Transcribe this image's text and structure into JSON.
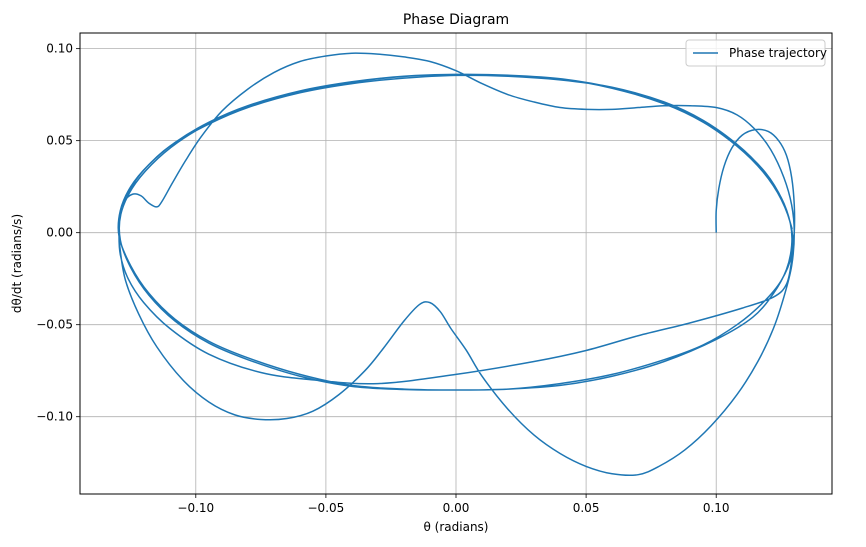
{
  "chart_data": {
    "type": "line",
    "title": "Phase Diagram",
    "xlabel": "θ (radians)",
    "ylabel": "dθ/dt (radians/s)",
    "xlim": [
      -0.1445,
      0.1445
    ],
    "ylim": [
      -0.142,
      0.1085
    ],
    "xticks": [
      {
        "value": -0.1,
        "label": "−0.10"
      },
      {
        "value": -0.05,
        "label": "−0.05"
      },
      {
        "value": 0.0,
        "label": "0.00"
      },
      {
        "value": 0.05,
        "label": "0.05"
      },
      {
        "value": 0.1,
        "label": "0.10"
      }
    ],
    "yticks": [
      {
        "value": -0.1,
        "label": "−0.10"
      },
      {
        "value": -0.05,
        "label": "−0.05"
      },
      {
        "value": 0.0,
        "label": "0.00"
      },
      {
        "value": 0.05,
        "label": "0.05"
      },
      {
        "value": 0.1,
        "label": "0.10"
      }
    ],
    "grid": true,
    "legend_position": "top-right",
    "series": [
      {
        "name": "Phase trajectory",
        "color": "#1f77b4",
        "points": [
          [
            0.1,
            0.0
          ],
          [
            0.1,
            0.012
          ],
          [
            0.101,
            0.024
          ],
          [
            0.103,
            0.036
          ],
          [
            0.106,
            0.046
          ],
          [
            0.11,
            0.053
          ],
          [
            0.115,
            0.056
          ],
          [
            0.12,
            0.055
          ],
          [
            0.124,
            0.05
          ],
          [
            0.127,
            0.042
          ],
          [
            0.129,
            0.03
          ],
          [
            0.13,
            0.015
          ],
          [
            0.13,
            0.0
          ],
          [
            0.129,
            -0.015
          ],
          [
            0.127,
            -0.028
          ],
          [
            0.122,
            -0.035
          ],
          [
            0.11,
            -0.041
          ],
          [
            0.09,
            -0.049
          ],
          [
            0.07,
            -0.056
          ],
          [
            0.05,
            -0.064
          ],
          [
            0.03,
            -0.07
          ],
          [
            0.0,
            -0.077
          ],
          [
            -0.03,
            -0.082
          ],
          [
            -0.055,
            -0.08
          ],
          [
            -0.075,
            -0.076
          ],
          [
            -0.095,
            -0.066
          ],
          [
            -0.11,
            -0.052
          ],
          [
            -0.12,
            -0.038
          ],
          [
            -0.126,
            -0.025
          ],
          [
            -0.129,
            -0.012
          ],
          [
            -0.1295,
            0.0
          ],
          [
            -0.129,
            0.012
          ],
          [
            -0.127,
            0.018
          ],
          [
            -0.124,
            0.021
          ],
          [
            -0.121,
            0.02
          ],
          [
            -0.118,
            0.016
          ],
          [
            -0.115,
            0.014
          ],
          [
            -0.113,
            0.017
          ],
          [
            -0.109,
            0.027
          ],
          [
            -0.104,
            0.039
          ],
          [
            -0.098,
            0.052
          ],
          [
            -0.09,
            0.066
          ],
          [
            -0.08,
            0.078
          ],
          [
            -0.07,
            0.087
          ],
          [
            -0.06,
            0.093
          ],
          [
            -0.05,
            0.096
          ],
          [
            -0.04,
            0.0975
          ],
          [
            -0.03,
            0.097
          ],
          [
            -0.02,
            0.0955
          ],
          [
            -0.01,
            0.093
          ],
          [
            0.0,
            0.088
          ],
          [
            0.01,
            0.081
          ],
          [
            0.02,
            0.075
          ],
          [
            0.03,
            0.071
          ],
          [
            0.04,
            0.068
          ],
          [
            0.05,
            0.067
          ],
          [
            0.06,
            0.067
          ],
          [
            0.07,
            0.068
          ],
          [
            0.08,
            0.069
          ],
          [
            0.09,
            0.069
          ],
          [
            0.1,
            0.068
          ],
          [
            0.108,
            0.064
          ],
          [
            0.115,
            0.056
          ],
          [
            0.121,
            0.045
          ],
          [
            0.126,
            0.03
          ],
          [
            0.129,
            0.015
          ],
          [
            0.13,
            0.0
          ],
          [
            0.129,
            -0.018
          ],
          [
            0.126,
            -0.035
          ],
          [
            0.122,
            -0.052
          ],
          [
            0.116,
            -0.07
          ],
          [
            0.108,
            -0.088
          ],
          [
            0.098,
            -0.105
          ],
          [
            0.088,
            -0.118
          ],
          [
            0.078,
            -0.127
          ],
          [
            0.07,
            -0.1315
          ],
          [
            0.06,
            -0.131
          ],
          [
            0.05,
            -0.127
          ],
          [
            0.04,
            -0.12
          ],
          [
            0.03,
            -0.11
          ],
          [
            0.02,
            -0.096
          ],
          [
            0.01,
            -0.078
          ],
          [
            0.004,
            -0.064
          ],
          [
            -0.002,
            -0.052
          ],
          [
            -0.006,
            -0.043
          ],
          [
            -0.01,
            -0.038
          ],
          [
            -0.014,
            -0.039
          ],
          [
            -0.02,
            -0.048
          ],
          [
            -0.028,
            -0.063
          ],
          [
            -0.035,
            -0.075
          ],
          [
            -0.045,
            -0.088
          ],
          [
            -0.055,
            -0.097
          ],
          [
            -0.065,
            -0.101
          ],
          [
            -0.075,
            -0.1015
          ],
          [
            -0.085,
            -0.099
          ],
          [
            -0.095,
            -0.092
          ],
          [
            -0.105,
            -0.08
          ],
          [
            -0.115,
            -0.062
          ],
          [
            -0.122,
            -0.044
          ],
          [
            -0.127,
            -0.026
          ],
          [
            -0.129,
            -0.01
          ],
          [
            -0.1295,
            0.002
          ],
          [
            -0.129,
            0.012
          ],
          [
            -0.126,
            0.022
          ],
          [
            -0.12,
            0.034
          ],
          [
            -0.11,
            0.047
          ],
          [
            -0.095,
            0.059
          ],
          [
            -0.08,
            0.068
          ],
          [
            -0.06,
            0.076
          ],
          [
            -0.04,
            0.081
          ],
          [
            -0.02,
            0.084
          ],
          [
            0.0,
            0.0855
          ],
          [
            0.02,
            0.085
          ],
          [
            0.04,
            0.083
          ],
          [
            0.06,
            0.079
          ],
          [
            0.08,
            0.071
          ],
          [
            0.095,
            0.061
          ],
          [
            0.108,
            0.048
          ],
          [
            0.118,
            0.034
          ],
          [
            0.125,
            0.019
          ],
          [
            0.1285,
            0.005
          ],
          [
            0.129,
            -0.007
          ],
          [
            0.127,
            -0.02
          ],
          [
            0.122,
            -0.033
          ],
          [
            0.114,
            -0.046
          ],
          [
            0.1,
            -0.058
          ],
          [
            0.08,
            -0.07
          ],
          [
            0.06,
            -0.078
          ],
          [
            0.04,
            -0.083
          ],
          [
            0.02,
            -0.085
          ],
          [
            0.0,
            -0.0855
          ],
          [
            -0.02,
            -0.085
          ],
          [
            -0.04,
            -0.083
          ],
          [
            -0.06,
            -0.077
          ],
          [
            -0.08,
            -0.068
          ],
          [
            -0.095,
            -0.059
          ],
          [
            -0.108,
            -0.047
          ],
          [
            -0.118,
            -0.033
          ],
          [
            -0.125,
            -0.018
          ],
          [
            -0.1295,
            -0.002
          ],
          [
            -0.129,
            0.012
          ],
          [
            -0.125,
            0.025
          ],
          [
            -0.118,
            0.037
          ],
          [
            -0.108,
            0.049
          ],
          [
            -0.095,
            0.06
          ],
          [
            -0.08,
            0.069
          ],
          [
            -0.06,
            0.077
          ],
          [
            -0.04,
            0.082
          ],
          [
            -0.02,
            0.085
          ],
          [
            0.0,
            0.086
          ],
          [
            0.02,
            0.0855
          ],
          [
            0.04,
            0.0835
          ],
          [
            0.06,
            0.0785
          ],
          [
            0.08,
            0.07
          ],
          [
            0.095,
            0.06
          ],
          [
            0.108,
            0.047
          ],
          [
            0.118,
            0.033
          ],
          [
            0.125,
            0.018
          ],
          [
            0.129,
            0.002
          ],
          [
            0.129,
            -0.012
          ],
          [
            0.125,
            -0.026
          ],
          [
            0.118,
            -0.038
          ],
          [
            0.108,
            -0.05
          ],
          [
            0.095,
            -0.061
          ],
          [
            0.08,
            -0.069
          ],
          [
            0.06,
            -0.077
          ],
          [
            0.04,
            -0.082
          ],
          [
            0.02,
            -0.085
          ],
          [
            0.0,
            -0.0855
          ],
          [
            -0.02,
            -0.0852
          ],
          [
            -0.04,
            -0.0835
          ],
          [
            -0.06,
            -0.078
          ],
          [
            -0.08,
            -0.069
          ],
          [
            -0.095,
            -0.06
          ],
          [
            -0.108,
            -0.048
          ],
          [
            -0.118,
            -0.034
          ],
          [
            -0.125,
            -0.019
          ],
          [
            -0.129,
            -0.004
          ],
          [
            -0.1288,
            0.01
          ],
          [
            -0.1245,
            0.024
          ],
          [
            -0.117,
            0.037
          ],
          [
            -0.107,
            0.049
          ],
          [
            -0.094,
            0.06
          ],
          [
            -0.079,
            0.069
          ],
          [
            -0.059,
            0.077
          ],
          [
            -0.039,
            0.082
          ],
          [
            -0.019,
            0.085
          ],
          [
            0.001,
            0.086
          ],
          [
            0.021,
            0.0855
          ],
          [
            0.041,
            0.0835
          ],
          [
            0.061,
            0.0785
          ],
          [
            0.081,
            0.07
          ],
          [
            0.096,
            0.0595
          ],
          [
            0.109,
            0.0465
          ],
          [
            0.119,
            0.0325
          ],
          [
            0.1255,
            0.0175
          ],
          [
            0.1292,
            0.002
          ]
        ]
      }
    ]
  }
}
